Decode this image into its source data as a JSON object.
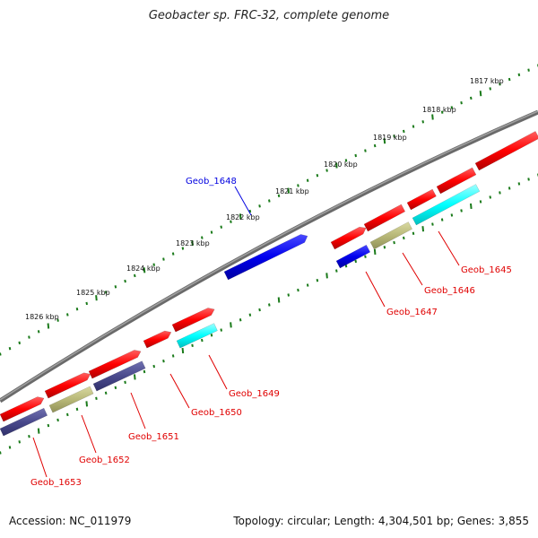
{
  "title": "Geobacter sp. FRC-32, complete genome",
  "accession_text": "Accession: NC_011979",
  "topology_text": "Topology: circular; Length: 4,304,501 bp; Genes: 3,855",
  "colors": {
    "backbone": "#808080",
    "tick": "#1a7a1a",
    "gene_red": "#ff0000",
    "gene_blue": "#0000ee",
    "gene_cyan": "#00ffff",
    "gene_olive": "#b8b878",
    "gene_slate": "#4a4a8c",
    "label_red": "#e00000",
    "label_blue": "#0000e0"
  },
  "kbp_labels": [
    "1817 kbp",
    "1818 kbp",
    "1819 kbp",
    "1820 kbp",
    "1821 kbp",
    "1822 kbp",
    "1823 kbp",
    "1824 kbp",
    "1825 kbp",
    "1826 kbp"
  ],
  "gene_labels": [
    "Geob_1645",
    "Geob_1646",
    "Geob_1647",
    "Geob_1648",
    "Geob_1649",
    "Geob_1650",
    "Geob_1651",
    "Geob_1652",
    "Geob_1653"
  ]
}
